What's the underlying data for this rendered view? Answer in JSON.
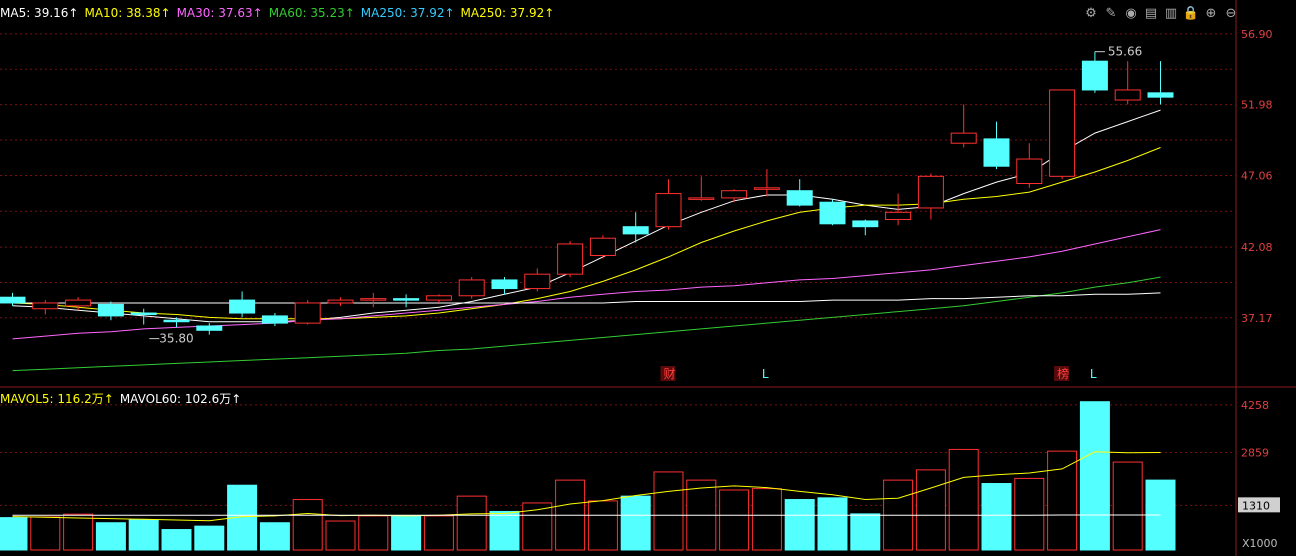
{
  "ma_legend": [
    {
      "label": "MA5: 39.16↑",
      "color": "#ffffff"
    },
    {
      "label": "MA10: 38.38↑",
      "color": "#ffff00"
    },
    {
      "label": "MA30: 37.63↑",
      "color": "#ff66ff"
    },
    {
      "label": "MA60: 35.23↑",
      "color": "#33cc33"
    },
    {
      "label": "MA250: 37.92↑",
      "color": "#33ccff"
    },
    {
      "label": "MA250: 37.92↑",
      "color": "#ffff00"
    }
  ],
  "vol_legend": [
    {
      "label": "MAVOL5: 116.2万↑",
      "color": "#ffff00"
    },
    {
      "label": "MAVOL60: 102.6万↑",
      "color": "#ffffff"
    }
  ],
  "toolbar": [
    "settings-icon",
    "pen-icon",
    "eye-icon",
    "shop-icon",
    "trash-icon",
    "lock-icon",
    "zoom-in-icon",
    "zoom-out-icon"
  ],
  "colors": {
    "up": "#ff3030",
    "down": "#54ffff",
    "grid": "#7a1010",
    "axis_text": "#e04040",
    "ma5": "#ffffff",
    "ma10": "#ffff00",
    "ma30": "#ff66ff",
    "ma60": "#33cc33",
    "ma250": "#ffffff",
    "annotation": "#cccccc"
  },
  "chart_data": [
    {
      "type": "candlestick",
      "ylim": [
        32.5,
        58.0
      ],
      "y_ticks": [
        56.9,
        51.98,
        47.06,
        42.08,
        37.17
      ],
      "high_annotation": "55.66",
      "low_annotation": "35.80",
      "markers": [
        {
          "index": 20,
          "label": "财",
          "boxed": true,
          "color": "#ff4040"
        },
        {
          "index": 23,
          "label": "L",
          "boxed": false,
          "color": "#54ffff"
        },
        {
          "index": 32,
          "label": "榜",
          "boxed": true,
          "color": "#ff4040"
        },
        {
          "index": 33,
          "label": "L",
          "boxed": false,
          "color": "#54ffff"
        }
      ],
      "candles": [
        {
          "o": 38.6,
          "h": 38.9,
          "c": 38.2,
          "l": 38.0
        },
        {
          "o": 37.8,
          "h": 38.4,
          "c": 38.2,
          "l": 37.4
        },
        {
          "o": 38.0,
          "h": 38.6,
          "c": 38.4,
          "l": 37.7
        },
        {
          "o": 38.1,
          "h": 38.3,
          "c": 37.3,
          "l": 37.0
        },
        {
          "o": 37.5,
          "h": 37.8,
          "c": 37.4,
          "l": 36.7
        },
        {
          "o": 37.0,
          "h": 37.2,
          "c": 36.9,
          "l": 36.5
        },
        {
          "o": 36.6,
          "h": 36.8,
          "c": 36.3,
          "l": 36.0
        },
        {
          "o": 38.4,
          "h": 39.0,
          "c": 37.5,
          "l": 37.2
        },
        {
          "o": 37.3,
          "h": 37.5,
          "c": 36.8,
          "l": 36.6
        },
        {
          "o": 36.8,
          "h": 38.4,
          "c": 38.2,
          "l": 36.7
        },
        {
          "o": 38.2,
          "h": 38.6,
          "c": 38.4,
          "l": 38.0
        },
        {
          "o": 38.4,
          "h": 38.9,
          "c": 38.5,
          "l": 37.9
        },
        {
          "o": 38.5,
          "h": 38.8,
          "c": 38.4,
          "l": 37.9
        },
        {
          "o": 38.4,
          "h": 38.8,
          "c": 38.7,
          "l": 38.2
        },
        {
          "o": 38.7,
          "h": 40.0,
          "c": 39.8,
          "l": 38.5
        },
        {
          "o": 39.8,
          "h": 40.0,
          "c": 39.2,
          "l": 38.8
        },
        {
          "o": 39.2,
          "h": 40.6,
          "c": 40.2,
          "l": 39.0
        },
        {
          "o": 40.2,
          "h": 42.5,
          "c": 42.3,
          "l": 40.0
        },
        {
          "o": 41.5,
          "h": 42.9,
          "c": 42.7,
          "l": 41.3
        },
        {
          "o": 43.5,
          "h": 44.5,
          "c": 43.0,
          "l": 42.4
        },
        {
          "o": 43.5,
          "h": 46.8,
          "c": 45.8,
          "l": 43.3
        },
        {
          "o": 45.5,
          "h": 47.0,
          "c": 45.5,
          "l": 45.3
        },
        {
          "o": 45.5,
          "h": 46.1,
          "c": 46.0,
          "l": 45.2
        },
        {
          "o": 46.1,
          "h": 47.5,
          "c": 46.2,
          "l": 45.6
        },
        {
          "o": 46.0,
          "h": 46.8,
          "c": 45.0,
          "l": 44.9
        },
        {
          "o": 45.2,
          "h": 45.4,
          "c": 43.7,
          "l": 43.6
        },
        {
          "o": 43.9,
          "h": 44.0,
          "c": 43.5,
          "l": 42.9
        },
        {
          "o": 44.0,
          "h": 45.8,
          "c": 44.5,
          "l": 43.6
        },
        {
          "o": 44.8,
          "h": 47.2,
          "c": 47.0,
          "l": 44.0
        },
        {
          "o": 49.3,
          "h": 52.0,
          "c": 50.0,
          "l": 49.0
        },
        {
          "o": 49.6,
          "h": 50.8,
          "c": 47.7,
          "l": 47.5
        },
        {
          "o": 46.5,
          "h": 49.3,
          "c": 48.2,
          "l": 46.2
        },
        {
          "o": 47.0,
          "h": 53.0,
          "c": 53.0,
          "l": 46.8
        },
        {
          "o": 55.0,
          "h": 55.66,
          "c": 53.0,
          "l": 52.8
        },
        {
          "o": 52.3,
          "h": 55.0,
          "c": 53.0,
          "l": 52.0
        },
        {
          "o": 52.8,
          "h": 55.0,
          "c": 52.5,
          "l": 52.0
        }
      ],
      "series": [
        {
          "name": "MA5",
          "color": "#ffffff",
          "start": 0,
          "values": [
            38.0,
            37.9,
            37.7,
            37.5,
            37.3,
            37.1,
            36.9,
            36.9,
            36.9,
            37.0,
            37.2,
            37.5,
            37.7,
            37.9,
            38.3,
            38.8,
            39.3,
            40.3,
            41.4,
            42.5,
            43.6,
            44.5,
            45.3,
            45.7,
            45.7,
            45.4,
            45.0,
            44.7,
            44.9,
            45.8,
            46.6,
            47.2,
            48.7,
            50.0,
            50.8,
            51.6
          ]
        },
        {
          "name": "MA10",
          "color": "#ffff00",
          "start": 0,
          "values": [
            38.2,
            38.1,
            37.9,
            37.7,
            37.5,
            37.4,
            37.2,
            37.1,
            37.1,
            37.1,
            37.1,
            37.2,
            37.3,
            37.5,
            37.8,
            38.1,
            38.5,
            39.0,
            39.7,
            40.5,
            41.4,
            42.4,
            43.2,
            43.9,
            44.5,
            44.8,
            45.0,
            45.0,
            45.1,
            45.4,
            45.6,
            45.9,
            46.6,
            47.3,
            48.1,
            49.0
          ]
        },
        {
          "name": "MA30",
          "color": "#ff66ff",
          "start": 0,
          "values": [
            35.7,
            35.9,
            36.1,
            36.2,
            36.4,
            36.5,
            36.6,
            36.7,
            36.8,
            37.0,
            37.1,
            37.3,
            37.5,
            37.7,
            37.9,
            38.1,
            38.3,
            38.6,
            38.8,
            39.0,
            39.1,
            39.3,
            39.4,
            39.6,
            39.8,
            39.9,
            40.1,
            40.3,
            40.5,
            40.8,
            41.1,
            41.4,
            41.8,
            42.3,
            42.8,
            43.3
          ]
        },
        {
          "name": "MA60",
          "color": "#33cc33",
          "start": 0,
          "values": [
            33.5,
            33.6,
            33.7,
            33.8,
            33.9,
            34.0,
            34.1,
            34.2,
            34.3,
            34.4,
            34.5,
            34.6,
            34.7,
            34.9,
            35.0,
            35.2,
            35.4,
            35.6,
            35.8,
            36.0,
            36.2,
            36.4,
            36.6,
            36.8,
            37.0,
            37.2,
            37.4,
            37.6,
            37.8,
            38.0,
            38.3,
            38.6,
            38.9,
            39.3,
            39.6,
            40.0
          ]
        },
        {
          "name": "MA250",
          "color": "#ffffff",
          "start": 0,
          "values": [
            38.2,
            38.2,
            38.2,
            38.2,
            38.2,
            38.2,
            38.2,
            38.2,
            38.2,
            38.2,
            38.2,
            38.2,
            38.2,
            38.2,
            38.2,
            38.2,
            38.2,
            38.2,
            38.2,
            38.3,
            38.3,
            38.3,
            38.3,
            38.3,
            38.3,
            38.4,
            38.4,
            38.4,
            38.5,
            38.5,
            38.6,
            38.7,
            38.7,
            38.8,
            38.8,
            38.9
          ]
        }
      ]
    },
    {
      "type": "bar",
      "ylim": [
        0,
        4400
      ],
      "y_ticks": [
        4258,
        2859,
        1310
      ],
      "y_tick_highlight": "1310",
      "unit_label": "X1000",
      "volumes": [
        950,
        970,
        1050,
        800,
        880,
        600,
        700,
        1900,
        800,
        1480,
        850,
        1000,
        1000,
        1000,
        1580,
        1130,
        1380,
        2050,
        1440,
        1580,
        2290,
        2050,
        1760,
        1800,
        1480,
        1530,
        1060,
        2050,
        2350,
        2950,
        1950,
        2100,
        2900,
        4350,
        2580,
        2050
      ],
      "series": [
        {
          "name": "MAVOL5",
          "color": "#ffff00",
          "values": [
            980,
            960,
            940,
            920,
            900,
            880,
            860,
            980,
            1000,
            1070,
            1010,
            1020,
            1000,
            1020,
            1060,
            1070,
            1180,
            1350,
            1450,
            1600,
            1720,
            1820,
            1880,
            1830,
            1720,
            1620,
            1480,
            1520,
            1820,
            2130,
            2210,
            2260,
            2380,
            2880,
            2850,
            2860
          ]
        },
        {
          "name": "MAVOL60",
          "color": "#ffffff",
          "values": [
            1020,
            1020,
            1020,
            1020,
            1020,
            1020,
            1020,
            1020,
            1020,
            1020,
            1020,
            1020,
            1020,
            1020,
            1020,
            1020,
            1020,
            1020,
            1020,
            1020,
            1020,
            1020,
            1020,
            1020,
            1020,
            1020,
            1020,
            1020,
            1020,
            1020,
            1020,
            1020,
            1026,
            1026,
            1026,
            1026
          ]
        }
      ]
    }
  ]
}
